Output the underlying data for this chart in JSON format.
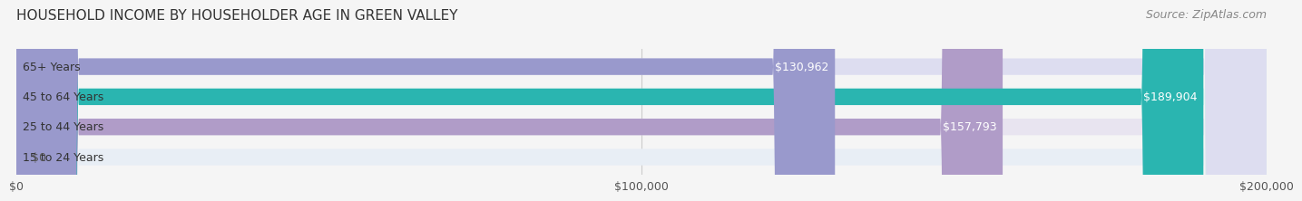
{
  "title": "HOUSEHOLD INCOME BY HOUSEHOLDER AGE IN GREEN VALLEY",
  "source": "Source: ZipAtlas.com",
  "categories": [
    "15 to 24 Years",
    "25 to 44 Years",
    "45 to 64 Years",
    "65+ Years"
  ],
  "values": [
    0,
    157793,
    189904,
    130962
  ],
  "labels": [
    "$0",
    "$157,793",
    "$189,904",
    "$130,962"
  ],
  "bar_colors": [
    "#a8c8e8",
    "#b09cc8",
    "#2ab5b0",
    "#9999cc"
  ],
  "bar_bg_colors": [
    "#e8eef5",
    "#e8e4f0",
    "#d0efed",
    "#ddddf0"
  ],
  "xlim": [
    0,
    200000
  ],
  "xticks": [
    0,
    100000,
    200000
  ],
  "xtick_labels": [
    "$0",
    "$100,000",
    "$200,000"
  ],
  "title_fontsize": 11,
  "source_fontsize": 9,
  "label_fontsize": 9,
  "bar_height": 0.55,
  "background_color": "#f5f5f5"
}
